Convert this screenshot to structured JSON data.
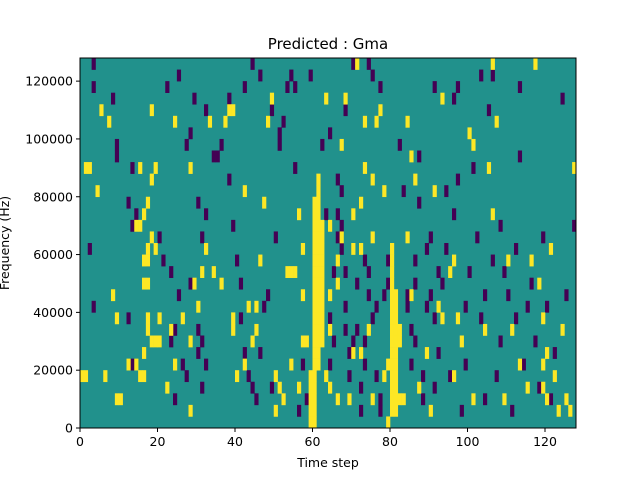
{
  "chart_data": {
    "type": "heatmap",
    "title": "Predicted : Gma",
    "xlabel": "Time step",
    "ylabel": "Frequency (Hz)",
    "xlim": [
      0,
      128
    ],
    "ylim": [
      0,
      128000
    ],
    "x_ticks": [
      0,
      20,
      40,
      60,
      80,
      100,
      120
    ],
    "y_ticks": [
      0,
      20000,
      40000,
      60000,
      80000,
      100000,
      120000
    ],
    "x_tick_labels": [
      "0",
      "20",
      "40",
      "60",
      "80",
      "100",
      "120"
    ],
    "y_tick_labels": [
      "0",
      "20000",
      "40000",
      "60000",
      "80000",
      "100000",
      "120000"
    ],
    "colormap": "viridis",
    "colors": {
      "background": "#21918c",
      "low": "#440154",
      "high": "#fde725"
    },
    "cell_size": {
      "time_steps": 1,
      "frequency_hz": 4000
    },
    "value_levels": {
      "low": -1,
      "background": 0,
      "high": 1
    },
    "high_cells": [
      [
        1,
        88000
      ],
      [
        2,
        88000
      ],
      [
        0,
        16000
      ],
      [
        1,
        16000
      ],
      [
        6,
        16000
      ],
      [
        9,
        8000
      ],
      [
        10,
        8000
      ],
      [
        5,
        108000
      ],
      [
        7,
        104000
      ],
      [
        12,
        20000
      ],
      [
        14,
        20000
      ],
      [
        15,
        16000
      ],
      [
        16,
        16000
      ],
      [
        16,
        24000
      ],
      [
        17,
        32000
      ],
      [
        17,
        36000
      ],
      [
        18,
        28000
      ],
      [
        19,
        28000
      ],
      [
        16,
        48000
      ],
      [
        17,
        48000
      ],
      [
        16,
        56000
      ],
      [
        17,
        56000
      ],
      [
        17,
        60000
      ],
      [
        18,
        64000
      ],
      [
        16,
        72000
      ],
      [
        17,
        76000
      ],
      [
        18,
        84000
      ],
      [
        15,
        68000
      ],
      [
        14,
        68000
      ],
      [
        19,
        60000
      ],
      [
        15,
        88000
      ],
      [
        19,
        88000
      ],
      [
        18,
        108000
      ],
      [
        9,
        36000
      ],
      [
        8,
        44000
      ],
      [
        4,
        80000
      ],
      [
        20,
        36000
      ],
      [
        20,
        28000
      ],
      [
        22,
        12000
      ],
      [
        24,
        20000
      ],
      [
        26,
        36000
      ],
      [
        28,
        28000
      ],
      [
        28,
        4000
      ],
      [
        29,
        48000
      ],
      [
        30,
        40000
      ],
      [
        28,
        88000
      ],
      [
        32,
        60000
      ],
      [
        34,
        52000
      ],
      [
        36,
        48000
      ],
      [
        37,
        104000
      ],
      [
        38,
        108000
      ],
      [
        39,
        36000
      ],
      [
        40,
        16000
      ],
      [
        42,
        20000
      ],
      [
        43,
        40000
      ],
      [
        44,
        28000
      ],
      [
        45,
        32000
      ],
      [
        45,
        40000
      ],
      [
        46,
        56000
      ],
      [
        47,
        76000
      ],
      [
        48,
        104000
      ],
      [
        49,
        112000
      ],
      [
        50,
        16000
      ],
      [
        50,
        4000
      ],
      [
        51,
        12000
      ],
      [
        52,
        8000
      ],
      [
        53,
        52000
      ],
      [
        54,
        20000
      ],
      [
        55,
        52000
      ],
      [
        56,
        72000
      ],
      [
        57,
        60000
      ],
      [
        57,
        44000
      ],
      [
        56,
        12000
      ],
      [
        59,
        0
      ],
      [
        60,
        0
      ],
      [
        59,
        4000
      ],
      [
        60,
        4000
      ],
      [
        59,
        8000
      ],
      [
        60,
        8000
      ],
      [
        59,
        12000
      ],
      [
        60,
        12000
      ],
      [
        59,
        16000
      ],
      [
        60,
        16000
      ],
      [
        60,
        20000
      ],
      [
        61,
        20000
      ],
      [
        60,
        24000
      ],
      [
        61,
        24000
      ],
      [
        60,
        28000
      ],
      [
        61,
        28000
      ],
      [
        62,
        28000
      ],
      [
        60,
        32000
      ],
      [
        61,
        32000
      ],
      [
        62,
        32000
      ],
      [
        60,
        36000
      ],
      [
        61,
        36000
      ],
      [
        62,
        36000
      ],
      [
        60,
        40000
      ],
      [
        61,
        40000
      ],
      [
        62,
        40000
      ],
      [
        60,
        44000
      ],
      [
        61,
        44000
      ],
      [
        62,
        44000
      ],
      [
        60,
        48000
      ],
      [
        61,
        48000
      ],
      [
        62,
        48000
      ],
      [
        60,
        52000
      ],
      [
        61,
        52000
      ],
      [
        62,
        52000
      ],
      [
        60,
        56000
      ],
      [
        61,
        56000
      ],
      [
        62,
        56000
      ],
      [
        60,
        60000
      ],
      [
        61,
        60000
      ],
      [
        62,
        60000
      ],
      [
        60,
        64000
      ],
      [
        61,
        64000
      ],
      [
        62,
        64000
      ],
      [
        60,
        68000
      ],
      [
        61,
        68000
      ],
      [
        62,
        68000
      ],
      [
        60,
        72000
      ],
      [
        61,
        72000
      ],
      [
        60,
        76000
      ],
      [
        61,
        76000
      ],
      [
        61,
        80000
      ],
      [
        61,
        84000
      ],
      [
        64,
        12000
      ],
      [
        64,
        32000
      ],
      [
        64,
        68000
      ],
      [
        64,
        44000
      ],
      [
        63,
        16000
      ],
      [
        66,
        8000
      ],
      [
        66,
        56000
      ],
      [
        67,
        64000
      ],
      [
        69,
        8000
      ],
      [
        70,
        72000
      ],
      [
        70,
        24000
      ],
      [
        72,
        24000
      ],
      [
        72,
        76000
      ],
      [
        73,
        88000
      ],
      [
        74,
        32000
      ],
      [
        75,
        8000
      ],
      [
        75,
        84000
      ],
      [
        76,
        104000
      ],
      [
        77,
        108000
      ],
      [
        78,
        80000
      ],
      [
        78,
        16000
      ],
      [
        79,
        0
      ],
      [
        79,
        20000
      ],
      [
        80,
        4000
      ],
      [
        80,
        8000
      ],
      [
        80,
        12000
      ],
      [
        80,
        16000
      ],
      [
        80,
        20000
      ],
      [
        80,
        24000
      ],
      [
        80,
        28000
      ],
      [
        80,
        32000
      ],
      [
        80,
        36000
      ],
      [
        80,
        40000
      ],
      [
        80,
        44000
      ],
      [
        80,
        48000
      ],
      [
        80,
        52000
      ],
      [
        80,
        56000
      ],
      [
        80,
        60000
      ],
      [
        81,
        4000
      ],
      [
        81,
        8000
      ],
      [
        81,
        12000
      ],
      [
        81,
        16000
      ],
      [
        81,
        20000
      ],
      [
        81,
        24000
      ],
      [
        81,
        28000
      ],
      [
        81,
        32000
      ],
      [
        81,
        36000
      ],
      [
        81,
        40000
      ],
      [
        81,
        44000
      ],
      [
        82,
        8000
      ],
      [
        82,
        28000
      ],
      [
        82,
        32000
      ],
      [
        83,
        8000
      ],
      [
        84,
        64000
      ],
      [
        85,
        44000
      ],
      [
        86,
        84000
      ],
      [
        87,
        12000
      ],
      [
        89,
        24000
      ],
      [
        90,
        4000
      ],
      [
        91,
        80000
      ],
      [
        92,
        40000
      ],
      [
        93,
        36000
      ],
      [
        95,
        52000
      ],
      [
        96,
        16000
      ],
      [
        96,
        56000
      ],
      [
        97,
        36000
      ],
      [
        98,
        28000
      ],
      [
        100,
        100000
      ],
      [
        101,
        96000
      ],
      [
        101,
        8000
      ],
      [
        104,
        32000
      ],
      [
        105,
        88000
      ],
      [
        106,
        72000
      ],
      [
        107,
        104000
      ],
      [
        109,
        8000
      ],
      [
        110,
        56000
      ],
      [
        111,
        32000
      ],
      [
        113,
        20000
      ],
      [
        115,
        12000
      ],
      [
        116,
        56000
      ],
      [
        118,
        48000
      ],
      [
        119,
        20000
      ],
      [
        119,
        12000
      ],
      [
        119,
        36000
      ],
      [
        120,
        8000
      ],
      [
        120,
        24000
      ],
      [
        122,
        16000
      ],
      [
        123,
        4000
      ],
      [
        124,
        32000
      ],
      [
        125,
        8000
      ],
      [
        126,
        4000
      ],
      [
        127,
        88000
      ],
      [
        54,
        52000
      ],
      [
        39,
        108000
      ],
      [
        33,
        104000
      ],
      [
        31,
        52000
      ],
      [
        39,
        32000
      ],
      [
        24,
        104000
      ],
      [
        23,
        32000
      ],
      [
        42,
        80000
      ],
      [
        58,
        28000
      ],
      [
        57,
        28000
      ],
      [
        63,
        112000
      ],
      [
        66,
        48000
      ],
      [
        67,
        96000
      ],
      [
        68,
        112000
      ],
      [
        71,
        124000
      ],
      [
        73,
        104000
      ],
      [
        70,
        60000
      ],
      [
        72,
        60000
      ],
      [
        75,
        64000
      ],
      [
        85,
        92000
      ],
      [
        84,
        104000
      ],
      [
        93,
        112000
      ],
      [
        106,
        124000
      ],
      [
        117,
        124000
      ],
      [
        121,
        60000
      ]
    ],
    "low_cells": [
      [
        3,
        124000
      ],
      [
        3,
        116000
      ],
      [
        8,
        112000
      ],
      [
        9,
        96000
      ],
      [
        9,
        92000
      ],
      [
        12,
        76000
      ],
      [
        13,
        88000
      ],
      [
        13,
        68000
      ],
      [
        14,
        72000
      ],
      [
        13,
        20000
      ],
      [
        12,
        36000
      ],
      [
        3,
        40000
      ],
      [
        2,
        60000
      ],
      [
        17,
        56000
      ],
      [
        20,
        64000
      ],
      [
        21,
        56000
      ],
      [
        23,
        28000
      ],
      [
        23,
        52000
      ],
      [
        24,
        8000
      ],
      [
        24,
        32000
      ],
      [
        25,
        44000
      ],
      [
        26,
        20000
      ],
      [
        27,
        16000
      ],
      [
        28,
        48000
      ],
      [
        30,
        24000
      ],
      [
        30,
        32000
      ],
      [
        31,
        12000
      ],
      [
        31,
        28000
      ],
      [
        32,
        20000
      ],
      [
        29,
        112000
      ],
      [
        27,
        96000
      ],
      [
        30,
        76000
      ],
      [
        31,
        64000
      ],
      [
        32,
        72000
      ],
      [
        34,
        92000
      ],
      [
        36,
        96000
      ],
      [
        38,
        84000
      ],
      [
        39,
        68000
      ],
      [
        40,
        56000
      ],
      [
        41,
        48000
      ],
      [
        41,
        36000
      ],
      [
        42,
        24000
      ],
      [
        43,
        16000
      ],
      [
        44,
        12000
      ],
      [
        45,
        8000
      ],
      [
        46,
        24000
      ],
      [
        47,
        40000
      ],
      [
        48,
        44000
      ],
      [
        49,
        12000
      ],
      [
        50,
        64000
      ],
      [
        51,
        100000
      ],
      [
        52,
        104000
      ],
      [
        53,
        116000
      ],
      [
        54,
        120000
      ],
      [
        55,
        116000
      ],
      [
        56,
        4000
      ],
      [
        57,
        20000
      ],
      [
        58,
        8000
      ],
      [
        62,
        96000
      ],
      [
        63,
        72000
      ],
      [
        64,
        20000
      ],
      [
        64,
        36000
      ],
      [
        65,
        28000
      ],
      [
        65,
        52000
      ],
      [
        66,
        64000
      ],
      [
        66,
        72000
      ],
      [
        66,
        84000
      ],
      [
        67,
        60000
      ],
      [
        67,
        68000
      ],
      [
        67,
        80000
      ],
      [
        68,
        52000
      ],
      [
        68,
        40000
      ],
      [
        68,
        32000
      ],
      [
        69,
        24000
      ],
      [
        69,
        16000
      ],
      [
        70,
        28000
      ],
      [
        71,
        48000
      ],
      [
        71,
        32000
      ],
      [
        72,
        12000
      ],
      [
        72,
        4000
      ],
      [
        73,
        20000
      ],
      [
        73,
        28000
      ],
      [
        73,
        56000
      ],
      [
        74,
        44000
      ],
      [
        74,
        52000
      ],
      [
        75,
        36000
      ],
      [
        76,
        16000
      ],
      [
        76,
        40000
      ],
      [
        77,
        4000
      ],
      [
        77,
        8000
      ],
      [
        78,
        44000
      ],
      [
        79,
        48000
      ],
      [
        79,
        56000
      ],
      [
        82,
        96000
      ],
      [
        83,
        80000
      ],
      [
        84,
        40000
      ],
      [
        84,
        44000
      ],
      [
        85,
        20000
      ],
      [
        85,
        32000
      ],
      [
        86,
        28000
      ],
      [
        86,
        48000
      ],
      [
        86,
        56000
      ],
      [
        87,
        76000
      ],
      [
        87,
        92000
      ],
      [
        88,
        16000
      ],
      [
        88,
        8000
      ],
      [
        89,
        60000
      ],
      [
        89,
        40000
      ],
      [
        90,
        64000
      ],
      [
        90,
        44000
      ],
      [
        91,
        12000
      ],
      [
        91,
        36000
      ],
      [
        92,
        24000
      ],
      [
        92,
        52000
      ],
      [
        93,
        48000
      ],
      [
        94,
        60000
      ],
      [
        94,
        80000
      ],
      [
        95,
        16000
      ],
      [
        96,
        72000
      ],
      [
        97,
        84000
      ],
      [
        98,
        4000
      ],
      [
        99,
        20000
      ],
      [
        99,
        40000
      ],
      [
        100,
        52000
      ],
      [
        101,
        88000
      ],
      [
        102,
        64000
      ],
      [
        103,
        36000
      ],
      [
        104,
        44000
      ],
      [
        104,
        8000
      ],
      [
        105,
        108000
      ],
      [
        106,
        56000
      ],
      [
        107,
        16000
      ],
      [
        108,
        28000
      ],
      [
        108,
        68000
      ],
      [
        109,
        52000
      ],
      [
        110,
        44000
      ],
      [
        111,
        4000
      ],
      [
        112,
        36000
      ],
      [
        112,
        60000
      ],
      [
        113,
        92000
      ],
      [
        113,
        116000
      ],
      [
        114,
        20000
      ],
      [
        115,
        40000
      ],
      [
        116,
        48000
      ],
      [
        117,
        28000
      ],
      [
        118,
        12000
      ],
      [
        119,
        64000
      ],
      [
        120,
        40000
      ],
      [
        121,
        8000
      ],
      [
        122,
        24000
      ],
      [
        124,
        112000
      ],
      [
        125,
        44000
      ],
      [
        127,
        68000
      ],
      [
        106,
        120000
      ],
      [
        103,
        120000
      ],
      [
        97,
        116000
      ],
      [
        96,
        112000
      ],
      [
        91,
        116000
      ],
      [
        77,
        116000
      ],
      [
        75,
        120000
      ],
      [
        74,
        124000
      ],
      [
        70,
        124000
      ],
      [
        68,
        108000
      ],
      [
        64,
        100000
      ],
      [
        59,
        120000
      ],
      [
        55,
        88000
      ],
      [
        51,
        96000
      ],
      [
        49,
        108000
      ],
      [
        46,
        120000
      ],
      [
        44,
        124000
      ],
      [
        42,
        116000
      ],
      [
        38,
        112000
      ],
      [
        35,
        92000
      ],
      [
        32,
        108000
      ],
      [
        28,
        100000
      ],
      [
        25,
        120000
      ],
      [
        22,
        116000
      ]
    ]
  }
}
